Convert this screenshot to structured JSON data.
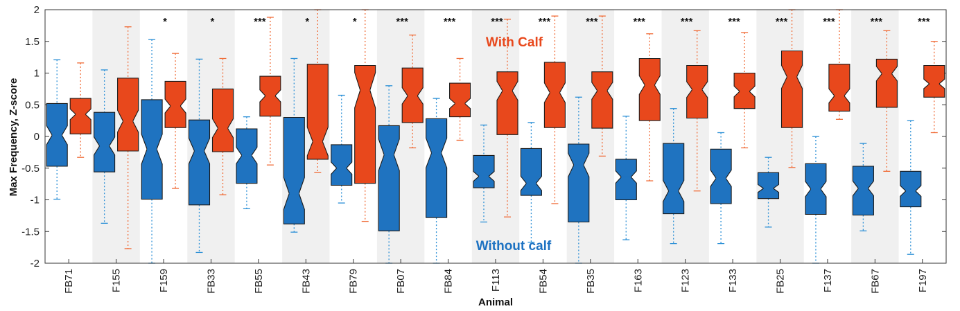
{
  "chart_data": {
    "type": "boxplot",
    "xlabel": "Animal",
    "ylabel": "Max Frequency, Z-score",
    "ylim": [
      -2,
      2
    ],
    "yticks": [
      "-2",
      "-1.5",
      "-1",
      "-0.5",
      "0",
      "0.5",
      "1",
      "1.5",
      "2"
    ],
    "annotations": {
      "with_calf": "With Calf",
      "without_calf": "Without calf"
    },
    "colors": {
      "without": "#1f73c0",
      "with": "#e8481c",
      "shade": "#f0f0f0",
      "wwhisker": "#2a8fd6",
      "cwhisker": "#f06a35"
    },
    "series": [
      {
        "name": "Without calf",
        "color": "#1f73c0"
      },
      {
        "name": "With Calf",
        "color": "#e8481c"
      }
    ],
    "animals": [
      {
        "name": "FB71",
        "sig": "",
        "without": {
          "q1": -0.47,
          "median": 0.02,
          "q3": 0.52,
          "lw": -0.99,
          "uw": 1.21
        },
        "with": {
          "q1": 0.04,
          "median": 0.35,
          "q3": 0.6,
          "lw": -0.33,
          "uw": 1.16
        }
      },
      {
        "name": "F155",
        "sig": "",
        "without": {
          "q1": -0.56,
          "median": -0.15,
          "q3": 0.38,
          "lw": -1.37,
          "uw": 1.05
        },
        "with": {
          "q1": -0.23,
          "median": 0.24,
          "q3": 0.92,
          "lw": -1.77,
          "uw": 1.73
        }
      },
      {
        "name": "F159",
        "sig": "*",
        "without": {
          "q1": -0.99,
          "median": -0.2,
          "q3": 0.58,
          "lw": -2.0,
          "uw": 1.53
        },
        "with": {
          "q1": 0.14,
          "median": 0.48,
          "q3": 0.87,
          "lw": -0.82,
          "uw": 1.31
        }
      },
      {
        "name": "FB33",
        "sig": "*",
        "without": {
          "q1": -1.08,
          "median": -0.23,
          "q3": 0.26,
          "lw": -1.83,
          "uw": 1.22
        },
        "with": {
          "q1": -0.24,
          "median": 0.13,
          "q3": 0.75,
          "lw": -0.92,
          "uw": 1.23
        }
      },
      {
        "name": "FB55",
        "sig": "***",
        "without": {
          "q1": -0.74,
          "median": -0.3,
          "q3": 0.12,
          "lw": -1.14,
          "uw": 0.31
        },
        "with": {
          "q1": 0.32,
          "median": 0.64,
          "q3": 0.95,
          "lw": -0.45,
          "uw": 1.88
        }
      },
      {
        "name": "FB43",
        "sig": "*",
        "without": {
          "q1": -1.38,
          "median": -0.9,
          "q3": 0.3,
          "lw": -1.51,
          "uw": 1.23
        },
        "with": {
          "q1": -0.36,
          "median": -0.08,
          "q3": 1.14,
          "lw": -0.57,
          "uw": 2.0
        }
      },
      {
        "name": "FB79",
        "sig": "*",
        "without": {
          "q1": -0.77,
          "median": -0.5,
          "q3": -0.13,
          "lw": -1.05,
          "uw": 0.65
        },
        "with": {
          "q1": -0.74,
          "median": 0.73,
          "q3": 1.12,
          "lw": -1.34,
          "uw": 2.0
        }
      },
      {
        "name": "FB07",
        "sig": "***",
        "without": {
          "q1": -1.49,
          "median": -0.29,
          "q3": 0.17,
          "lw": -2.0,
          "uw": 0.8
        },
        "with": {
          "q1": 0.22,
          "median": 0.64,
          "q3": 1.08,
          "lw": -0.18,
          "uw": 1.6
        }
      },
      {
        "name": "FB84",
        "sig": "***",
        "without": {
          "q1": -1.28,
          "median": -0.26,
          "q3": 0.28,
          "lw": -2.0,
          "uw": 0.6
        },
        "with": {
          "q1": 0.31,
          "median": 0.52,
          "q3": 0.84,
          "lw": -0.06,
          "uw": 1.23
        }
      },
      {
        "name": "F113",
        "sig": "***",
        "without": {
          "q1": -0.81,
          "median": -0.63,
          "q3": -0.3,
          "lw": -1.35,
          "uw": 0.18
        },
        "with": {
          "q1": 0.03,
          "median": 0.72,
          "q3": 1.02,
          "lw": -1.27,
          "uw": 1.85
        }
      },
      {
        "name": "FB54",
        "sig": "***",
        "without": {
          "q1": -0.93,
          "median": -0.74,
          "q3": -0.19,
          "lw": -1.67,
          "uw": 0.22
        },
        "with": {
          "q1": 0.14,
          "median": 0.69,
          "q3": 1.17,
          "lw": -1.06,
          "uw": 1.9
        }
      },
      {
        "name": "FB35",
        "sig": "***",
        "without": {
          "q1": -1.35,
          "median": -0.45,
          "q3": -0.12,
          "lw": -2.0,
          "uw": 0.62
        },
        "with": {
          "q1": 0.13,
          "median": 0.72,
          "q3": 1.02,
          "lw": -0.31,
          "uw": 1.9
        }
      },
      {
        "name": "F163",
        "sig": "***",
        "without": {
          "q1": -1.0,
          "median": -0.64,
          "q3": -0.36,
          "lw": -1.63,
          "uw": 0.32
        },
        "with": {
          "q1": 0.25,
          "median": 0.81,
          "q3": 1.23,
          "lw": -0.7,
          "uw": 1.62
        }
      },
      {
        "name": "F123",
        "sig": "***",
        "without": {
          "q1": -1.22,
          "median": -0.86,
          "q3": -0.11,
          "lw": -1.69,
          "uw": 0.44
        },
        "with": {
          "q1": 0.29,
          "median": 0.74,
          "q3": 1.12,
          "lw": -0.86,
          "uw": 1.67
        }
      },
      {
        "name": "F133",
        "sig": "***",
        "without": {
          "q1": -1.06,
          "median": -0.66,
          "q3": -0.2,
          "lw": -1.69,
          "uw": 0.06
        },
        "with": {
          "q1": 0.44,
          "median": 0.71,
          "q3": 1.0,
          "lw": -0.18,
          "uw": 1.64
        }
      },
      {
        "name": "FB25",
        "sig": "***",
        "without": {
          "q1": -0.98,
          "median": -0.82,
          "q3": -0.57,
          "lw": -1.43,
          "uw": -0.33
        },
        "with": {
          "q1": 0.14,
          "median": 0.94,
          "q3": 1.35,
          "lw": -0.49,
          "uw": 2.0
        }
      },
      {
        "name": "F137",
        "sig": "***",
        "without": {
          "q1": -1.23,
          "median": -0.83,
          "q3": -0.43,
          "lw": -2.0,
          "uw": 0.0
        },
        "with": {
          "q1": 0.4,
          "median": 0.64,
          "q3": 1.14,
          "lw": 0.27,
          "uw": 2.0
        }
      },
      {
        "name": "FB67",
        "sig": "***",
        "without": {
          "q1": -1.24,
          "median": -0.82,
          "q3": -0.47,
          "lw": -1.49,
          "uw": -0.11
        },
        "with": {
          "q1": 0.46,
          "median": 0.99,
          "q3": 1.22,
          "lw": -0.55,
          "uw": 1.67
        }
      },
      {
        "name": "F197",
        "sig": "***",
        "without": {
          "q1": -1.11,
          "median": -0.86,
          "q3": -0.55,
          "lw": -1.86,
          "uw": 0.25
        },
        "with": {
          "q1": 0.62,
          "median": 0.83,
          "q3": 1.12,
          "lw": 0.06,
          "uw": 1.5
        }
      }
    ]
  }
}
